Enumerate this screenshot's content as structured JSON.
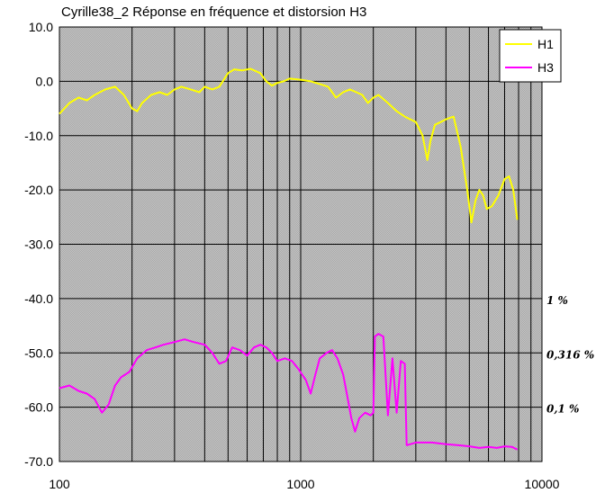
{
  "chart_data": {
    "type": "line",
    "title": "Cyrille38_2 Réponse en fréquence et distorsion H3",
    "x_scale": "log",
    "xlim": [
      100,
      10000
    ],
    "ylim": [
      -70,
      10
    ],
    "x_ticks": [
      100,
      1000,
      10000
    ],
    "x_tick_labels": [
      "100",
      "1000",
      "10000"
    ],
    "y_ticks": [
      10,
      0,
      -10,
      -20,
      -30,
      -40,
      -50,
      -60,
      -70
    ],
    "y_tick_labels": [
      "10.0",
      "0.0",
      "-10.0",
      "-20.0",
      "-30.0",
      "-40.0",
      "-50.0",
      "-60.0",
      "-70.0"
    ],
    "grid": true,
    "legend_position": "top-right",
    "series": [
      {
        "name": "H1",
        "color": "#ffff00",
        "points": [
          [
            100,
            -6
          ],
          [
            110,
            -4
          ],
          [
            120,
            -3
          ],
          [
            130,
            -3.5
          ],
          [
            140,
            -2.5
          ],
          [
            155,
            -1.5
          ],
          [
            170,
            -1
          ],
          [
            185,
            -2.5
          ],
          [
            200,
            -5
          ],
          [
            210,
            -5.5
          ],
          [
            220,
            -4
          ],
          [
            240,
            -2.5
          ],
          [
            260,
            -2
          ],
          [
            280,
            -2.5
          ],
          [
            300,
            -1.5
          ],
          [
            320,
            -1
          ],
          [
            350,
            -1.5
          ],
          [
            380,
            -2
          ],
          [
            400,
            -1
          ],
          [
            430,
            -1.5
          ],
          [
            460,
            -1
          ],
          [
            500,
            1.5
          ],
          [
            530,
            2.2
          ],
          [
            570,
            2
          ],
          [
            620,
            2.3
          ],
          [
            680,
            1.5
          ],
          [
            720,
            0
          ],
          [
            760,
            -0.8
          ],
          [
            800,
            -0.3
          ],
          [
            850,
            0
          ],
          [
            900,
            0.5
          ],
          [
            1000,
            0.3
          ],
          [
            1100,
            0
          ],
          [
            1200,
            -0.5
          ],
          [
            1300,
            -1
          ],
          [
            1400,
            -3
          ],
          [
            1500,
            -2
          ],
          [
            1600,
            -1.5
          ],
          [
            1700,
            -2
          ],
          [
            1800,
            -2.5
          ],
          [
            1900,
            -4
          ],
          [
            2000,
            -3
          ],
          [
            2100,
            -2.5
          ],
          [
            2300,
            -4
          ],
          [
            2500,
            -5.5
          ],
          [
            2700,
            -6.5
          ],
          [
            3000,
            -7.5
          ],
          [
            3200,
            -10
          ],
          [
            3350,
            -14.5
          ],
          [
            3450,
            -11
          ],
          [
            3600,
            -8
          ],
          [
            3800,
            -7.5
          ],
          [
            4000,
            -7
          ],
          [
            4300,
            -6.5
          ],
          [
            4600,
            -12
          ],
          [
            4900,
            -20
          ],
          [
            5100,
            -26
          ],
          [
            5300,
            -22
          ],
          [
            5500,
            -20
          ],
          [
            5700,
            -21
          ],
          [
            5900,
            -23.5
          ],
          [
            6200,
            -23
          ],
          [
            6600,
            -21
          ],
          [
            7000,
            -18
          ],
          [
            7300,
            -17.5
          ],
          [
            7600,
            -20
          ],
          [
            7900,
            -25.5
          ]
        ]
      },
      {
        "name": "H3",
        "color": "#ff00ff",
        "points": [
          [
            100,
            -56.5
          ],
          [
            110,
            -56
          ],
          [
            120,
            -57
          ],
          [
            130,
            -57.5
          ],
          [
            140,
            -58.5
          ],
          [
            150,
            -61
          ],
          [
            160,
            -59.5
          ],
          [
            170,
            -56
          ],
          [
            180,
            -54.5
          ],
          [
            195,
            -53.5
          ],
          [
            210,
            -51
          ],
          [
            230,
            -49.5
          ],
          [
            250,
            -49
          ],
          [
            270,
            -48.5
          ],
          [
            300,
            -48
          ],
          [
            330,
            -47.5
          ],
          [
            360,
            -48
          ],
          [
            400,
            -48.5
          ],
          [
            430,
            -50
          ],
          [
            460,
            -52
          ],
          [
            490,
            -51.5
          ],
          [
            520,
            -49
          ],
          [
            560,
            -49.5
          ],
          [
            600,
            -50.5
          ],
          [
            640,
            -49
          ],
          [
            680,
            -48.5
          ],
          [
            720,
            -49
          ],
          [
            760,
            -50
          ],
          [
            800,
            -51.5
          ],
          [
            860,
            -51
          ],
          [
            920,
            -51.5
          ],
          [
            980,
            -53
          ],
          [
            1050,
            -55
          ],
          [
            1100,
            -57.5
          ],
          [
            1150,
            -54
          ],
          [
            1200,
            -51
          ],
          [
            1280,
            -50
          ],
          [
            1350,
            -49.5
          ],
          [
            1420,
            -51
          ],
          [
            1500,
            -54
          ],
          [
            1560,
            -58
          ],
          [
            1620,
            -62
          ],
          [
            1680,
            -64.5
          ],
          [
            1750,
            -62
          ],
          [
            1850,
            -61
          ],
          [
            1950,
            -61.5
          ],
          [
            2000,
            -61
          ],
          [
            2030,
            -47
          ],
          [
            2100,
            -46.5
          ],
          [
            2200,
            -47
          ],
          [
            2300,
            -61.5
          ],
          [
            2400,
            -51
          ],
          [
            2500,
            -61
          ],
          [
            2600,
            -51.5
          ],
          [
            2700,
            -52
          ],
          [
            2750,
            -67
          ],
          [
            3000,
            -66.5
          ],
          [
            3500,
            -66.5
          ],
          [
            4000,
            -66.8
          ],
          [
            4500,
            -67
          ],
          [
            5000,
            -67.2
          ],
          [
            5500,
            -67.5
          ],
          [
            6000,
            -67.3
          ],
          [
            6500,
            -67.5
          ],
          [
            7000,
            -67.2
          ],
          [
            7500,
            -67.3
          ],
          [
            7900,
            -67.8
          ]
        ]
      }
    ],
    "annotations": [
      {
        "text": "1 %",
        "y": -40
      },
      {
        "text": "0,316 %",
        "y": -50
      },
      {
        "text": "0,1 %",
        "y": -60
      }
    ]
  }
}
